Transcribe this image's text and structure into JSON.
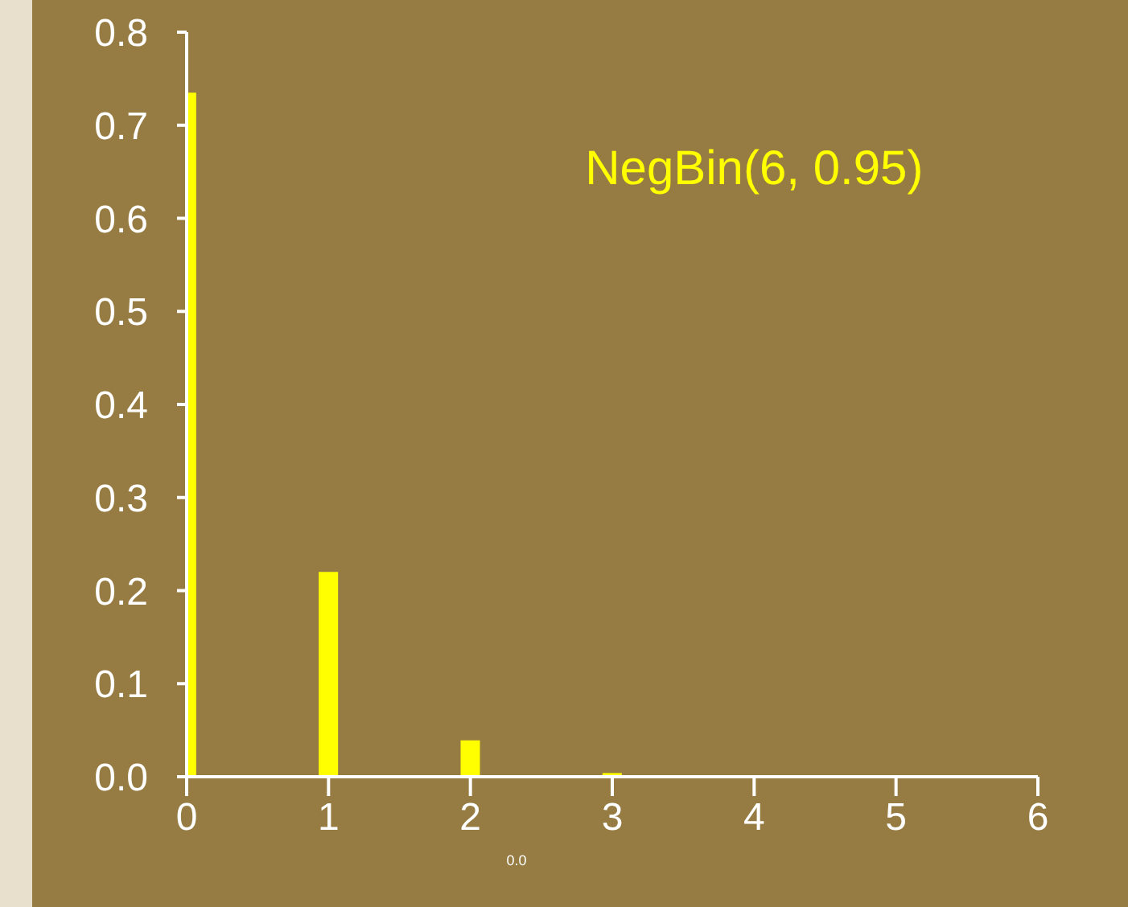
{
  "chart_data": {
    "type": "bar",
    "title": "NegBin(6, 0.95)",
    "x": [
      0,
      1,
      2,
      3,
      4,
      5,
      6
    ],
    "values": [
      0.735,
      0.22,
      0.039,
      0.004,
      0,
      0,
      0
    ],
    "color": "#ffff00",
    "xlim": [
      0,
      6
    ],
    "xticks": [
      0,
      1,
      2,
      3,
      4,
      5,
      6
    ],
    "ylim": [
      0,
      0.8
    ],
    "yticks": [
      {
        "value": 0,
        "label": "0.0"
      },
      0.1,
      0.2,
      0.3,
      0.4,
      0.5,
      0.6,
      0.7,
      0.8
    ],
    "grid": false,
    "legend": false,
    "annotations": [
      "0.0"
    ]
  }
}
